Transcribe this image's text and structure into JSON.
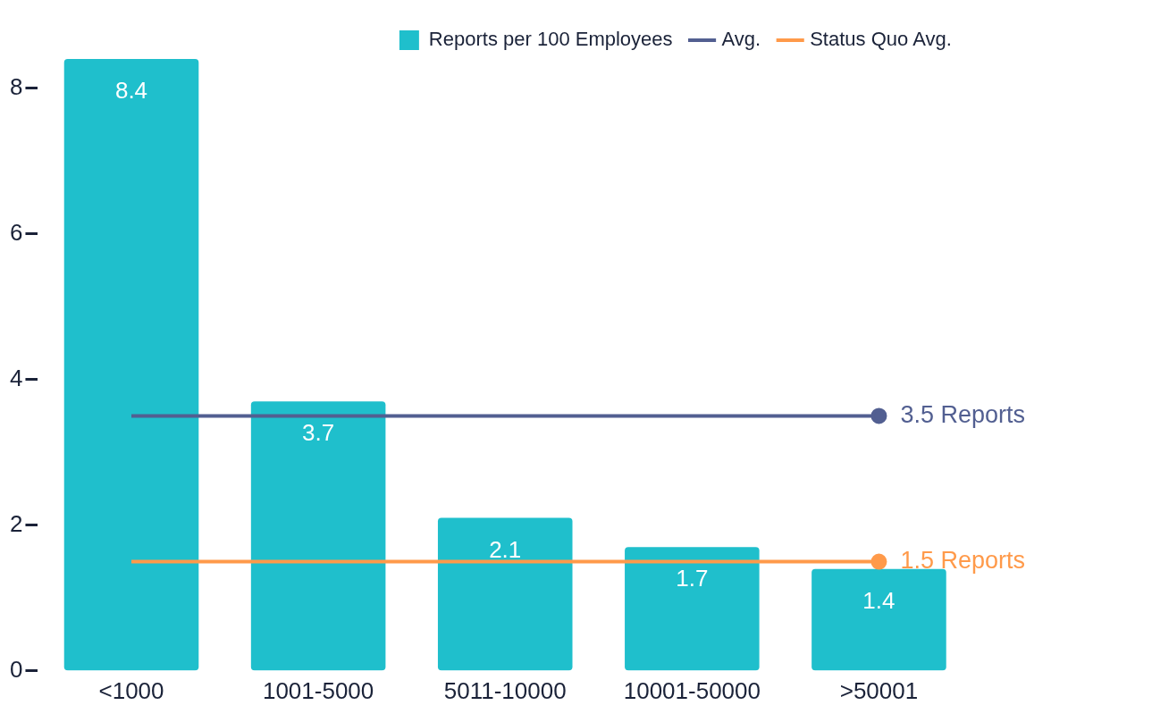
{
  "chart_data": {
    "type": "bar",
    "categories": [
      "<1000",
      "1001-5000",
      "5011-10000",
      "10001-50000",
      ">50001"
    ],
    "series": [
      {
        "name": "Reports per 100 Employees",
        "color": "#1fbfcc",
        "values": [
          8.4,
          3.7,
          2.1,
          1.7,
          1.4
        ]
      },
      {
        "name": "Avg.",
        "type": "line",
        "color": "#525f91",
        "values": [
          3.5,
          3.5,
          3.5,
          3.5,
          3.5
        ],
        "value_labels": [
          null,
          null,
          null,
          null,
          "3.5 Reports"
        ]
      },
      {
        "name": "Status Quo Avg.",
        "type": "line",
        "color": "#ff9a4a",
        "values": [
          1.5,
          1.5,
          1.5,
          1.5,
          1.5
        ],
        "value_labels": [
          null,
          null,
          null,
          null,
          "1.5 Reports"
        ]
      }
    ],
    "ylim": [
      0,
      8.4
    ],
    "yticks": [
      0,
      2,
      4,
      6,
      8
    ],
    "grid": false,
    "legend": "top right",
    "data_labels": true,
    "marker": "none",
    "line_style": "solid"
  }
}
